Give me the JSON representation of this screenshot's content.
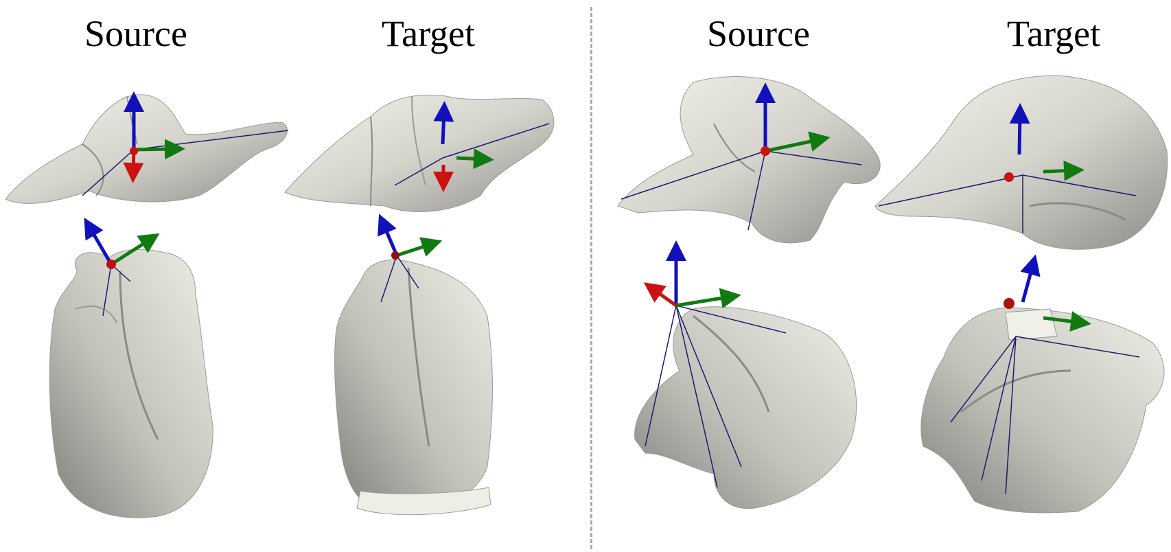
{
  "panels": [
    {
      "source_label": "Source",
      "target_label": "Target"
    },
    {
      "source_label": "Source",
      "target_label": "Target"
    }
  ],
  "colors": {
    "mesh_light": "#ecebe3",
    "mesh_mid": "#c9c8c0",
    "mesh_dark": "#8c8c88",
    "axis_x": "#cc1111",
    "axis_y": "#117a11",
    "axis_z": "#1111bb",
    "line": "#1a1a6e",
    "divider": "#aaaaaa"
  }
}
